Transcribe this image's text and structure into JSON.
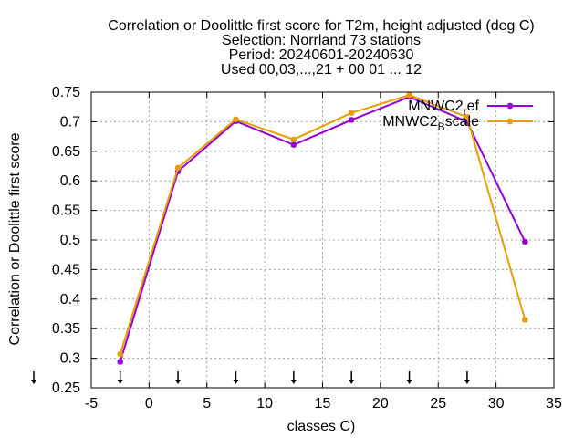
{
  "chart_data": {
    "type": "line",
    "title_lines": [
      "Correlation or Doolittle first score  for T2m, height adjusted (deg C)",
      "Selection: Norrland     73 stations",
      "Period: 20240601-20240630",
      "Used 00,03,...,21 + 00 01 ... 12"
    ],
    "xlabel": "classes C)",
    "ylabel": "Correlation or Doolittle first score",
    "xlim": [
      -5,
      35
    ],
    "ylim": [
      0.25,
      0.75
    ],
    "x_ticks": [
      "-5",
      "0",
      "5",
      "10",
      "15",
      "20",
      "25",
      "30",
      "35"
    ],
    "y_ticks": [
      "0.25",
      "0.3",
      "0.35",
      "0.4",
      "0.45",
      "0.5",
      "0.55",
      "0.6",
      "0.65",
      "0.7",
      "0.75"
    ],
    "grid": true,
    "legend_position": "top-right",
    "class_markers_x": [
      -2.5,
      2.5,
      7.5,
      12.5,
      17.5,
      22.5,
      27.5
    ],
    "series": [
      {
        "name_main": "MNWC2",
        "name_sub": "r",
        "name_rest": "ef",
        "color": "#9400d3",
        "x": [
          -2.5,
          2.5,
          7.5,
          12.5,
          17.5,
          22.5,
          27.5,
          32.5
        ],
        "values": [
          0.294,
          0.616,
          0.701,
          0.661,
          0.703,
          0.742,
          0.7,
          0.497
        ]
      },
      {
        "name_main": "MNWC2",
        "name_sub": "B",
        "name_rest": "scale",
        "color": "#e69f00",
        "x": [
          -2.5,
          2.5,
          7.5,
          12.5,
          17.5,
          22.5,
          27.5,
          32.5
        ],
        "values": [
          0.307,
          0.622,
          0.704,
          0.67,
          0.715,
          0.745,
          0.708,
          0.365
        ]
      }
    ]
  }
}
